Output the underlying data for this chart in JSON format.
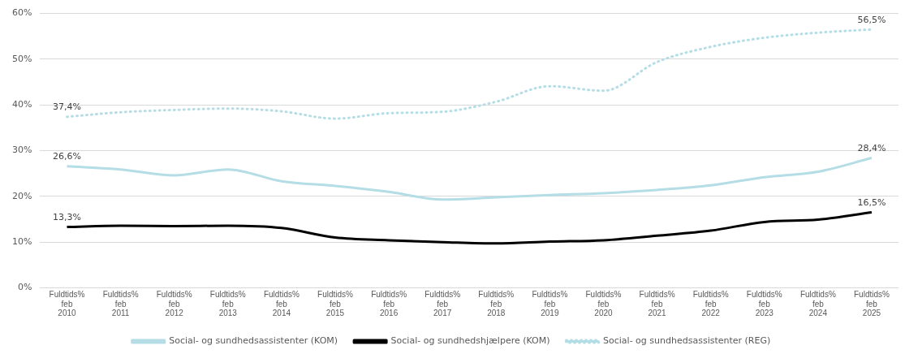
{
  "chart_data": {
    "type": "line",
    "categories": [
      "Fuldtids% feb 2010",
      "Fuldtids% feb 2011",
      "Fuldtids% feb 2012",
      "Fuldtids% feb 2013",
      "Fuldtids% feb 2014",
      "Fuldtids% feb 2015",
      "Fuldtids% feb 2016",
      "Fuldtids% feb 2017",
      "Fuldtids% feb 2018",
      "Fuldtids% feb 2019",
      "Fuldtids% feb 2020",
      "Fuldtids% feb 2021",
      "Fuldtids% feb 2022",
      "Fuldtids% feb 2023",
      "Fuldtids% feb 2024",
      "Fuldtids% feb 2025"
    ],
    "series": [
      {
        "name": "Social- og sundhedsassistenter (KOM)",
        "color": "#b4dde6",
        "line_style": "solid",
        "values": [
          26.6,
          25.9,
          24.6,
          25.9,
          23.3,
          22.3,
          21.0,
          19.3,
          19.8,
          20.3,
          20.7,
          21.4,
          22.4,
          24.2,
          25.4,
          28.4
        ],
        "value_labels": [
          "26,6%",
          null,
          null,
          null,
          null,
          null,
          null,
          null,
          null,
          null,
          null,
          null,
          null,
          null,
          null,
          "28,4%"
        ]
      },
      {
        "name": "Social- og sundhedshjælpere (KOM)",
        "color": "#000000",
        "line_style": "solid",
        "values": [
          13.3,
          13.6,
          13.5,
          13.6,
          13.1,
          11.0,
          10.4,
          10.0,
          9.7,
          10.1,
          10.4,
          11.4,
          12.5,
          14.4,
          14.9,
          16.5
        ],
        "value_labels": [
          "13,3%",
          null,
          null,
          null,
          null,
          null,
          null,
          null,
          null,
          null,
          null,
          null,
          null,
          null,
          null,
          "16,5%"
        ]
      },
      {
        "name": "Social- og sundhedsassistenter (REG)",
        "color": "#b4dde6",
        "line_style": "dotted",
        "values": [
          37.4,
          38.4,
          38.9,
          39.2,
          38.6,
          37.0,
          38.2,
          38.5,
          40.7,
          44.1,
          43.1,
          49.4,
          52.7,
          54.7,
          55.8,
          56.5
        ],
        "value_labels": [
          "37,4%",
          null,
          null,
          null,
          null,
          null,
          null,
          null,
          null,
          null,
          null,
          null,
          null,
          null,
          null,
          "56,5%"
        ]
      }
    ],
    "ylim": [
      0,
      60
    ],
    "yticks": [
      {
        "value": 0,
        "label": "0%"
      },
      {
        "value": 10,
        "label": "10%"
      },
      {
        "value": 20,
        "label": "20%"
      },
      {
        "value": 30,
        "label": "30%"
      },
      {
        "value": 40,
        "label": "40%"
      },
      {
        "value": 50,
        "label": "50%"
      },
      {
        "value": 60,
        "label": "60%"
      }
    ],
    "grid": "y",
    "legend": "bottom",
    "marker": "none"
  }
}
